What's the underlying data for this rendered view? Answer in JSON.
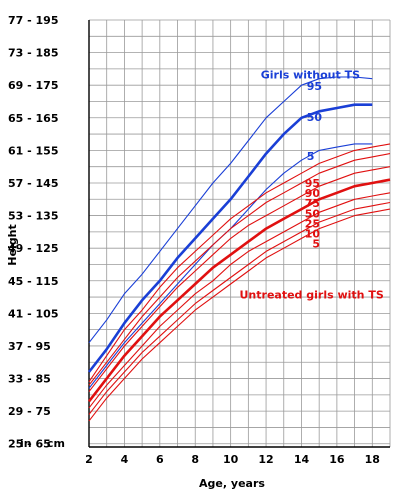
{
  "chart_data": {
    "type": "line",
    "title": "",
    "xlabel": "Age, years",
    "ylabel": "Height",
    "xlim": [
      2,
      19
    ],
    "ylim": [
      64,
      195
    ],
    "grid": true,
    "x_ticks": [
      2,
      4,
      6,
      8,
      10,
      12,
      14,
      16,
      18
    ],
    "y_ticks": [
      {
        "cm": 65,
        "label": "25 - 65"
      },
      {
        "cm": 75,
        "label": "29 - 75"
      },
      {
        "cm": 85,
        "label": "33 - 85"
      },
      {
        "cm": 95,
        "label": "37 - 95"
      },
      {
        "cm": 105,
        "label": "41 - 105"
      },
      {
        "cm": 115,
        "label": "45 - 115"
      },
      {
        "cm": 125,
        "label": "49 - 125"
      },
      {
        "cm": 135,
        "label": "53 - 135"
      },
      {
        "cm": 145,
        "label": "57 - 145"
      },
      {
        "cm": 155,
        "label": "61 - 155"
      },
      {
        "cm": 165,
        "label": "65 - 165"
      },
      {
        "cm": 175,
        "label": "69 - 175"
      },
      {
        "cm": 185,
        "label": "73 - 185"
      },
      {
        "cm": 195,
        "label": "77 - 195"
      }
    ],
    "y_unit_label": "in    cm",
    "groups": [
      {
        "label": "Girls without TS",
        "color": "#1a3fd6",
        "series": [
          {
            "name": "95",
            "label_at_x": 14.2,
            "stroke": "thin",
            "x": [
              2,
              3,
              4,
              5,
              6,
              7,
              8,
              9,
              10,
              11,
              12,
              13,
              14,
              15,
              16,
              17,
              18
            ],
            "y": [
              96,
              103,
              111,
              117,
              124,
              131,
              138,
              145,
              151,
              158,
              165,
              170,
              175,
              177,
              177.5,
              177.5,
              177
            ]
          },
          {
            "name": "50",
            "label_at_x": 14.2,
            "stroke": "thick",
            "x": [
              2,
              3,
              4,
              5,
              6,
              7,
              8,
              9,
              10,
              11,
              12,
              13,
              14,
              15,
              16,
              17,
              18
            ],
            "y": [
              87,
              94,
              102,
              109,
              115,
              122,
              128,
              134,
              140,
              147,
              154,
              160,
              165,
              167,
              168,
              169,
              169
            ]
          },
          {
            "name": "5",
            "label_at_x": 14.5,
            "stroke": "thin",
            "x": [
              2,
              3,
              4,
              5,
              6,
              7,
              8,
              9,
              10,
              11,
              12,
              13,
              14,
              15,
              16,
              17,
              18
            ],
            "y": [
              82,
              89,
              96,
              102,
              108,
              114,
              120,
              126,
              131,
              137,
              143,
              148,
              152,
              155,
              156,
              157,
              157
            ]
          }
        ]
      },
      {
        "label": "Untreated girls with TS",
        "color": "#e01010",
        "series": [
          {
            "name": "95",
            "label_at_x": 14.5,
            "stroke": "thin",
            "x": [
              2,
              3,
              4,
              5,
              6,
              7,
              8,
              9,
              10,
              11,
              12,
              13,
              14,
              15,
              16,
              17,
              18,
              19
            ],
            "y": [
              84,
              92,
              100,
              106,
              113,
              119,
              124,
              129,
              134,
              138,
              142,
              145,
              148,
              151,
              153,
              155,
              156,
              157
            ]
          },
          {
            "name": "90",
            "label_at_x": 14.5,
            "stroke": "thin",
            "x": [
              2,
              3,
              4,
              5,
              6,
              7,
              8,
              9,
              10,
              11,
              12,
              13,
              14,
              15,
              16,
              17,
              18,
              19
            ],
            "y": [
              83,
              90,
              97,
              104,
              110,
              116,
              121,
              126,
              131,
              135,
              139,
              142,
              145,
              148,
              150,
              152,
              153,
              154
            ]
          },
          {
            "name": "75",
            "label_at_x": 14.5,
            "stroke": "thin",
            "x": [
              2,
              3,
              4,
              5,
              6,
              7,
              8,
              9,
              10,
              11,
              12,
              13,
              14,
              15,
              16,
              17,
              18,
              19
            ],
            "y": [
              81,
              88,
              95,
              101,
              107,
              113,
              118,
              123,
              128,
              132,
              135,
              138,
              141,
              144,
              146,
              148,
              149,
              150
            ]
          },
          {
            "name": "50",
            "label_at_x": 14.5,
            "stroke": "thick",
            "x": [
              2,
              3,
              4,
              5,
              6,
              7,
              8,
              9,
              10,
              11,
              12,
              13,
              14,
              15,
              16,
              17,
              18,
              19
            ],
            "y": [
              78,
              85,
              92,
              98,
              104,
              109,
              114,
              119,
              123,
              127,
              131,
              134,
              137,
              140,
              142,
              144,
              145,
              146
            ]
          },
          {
            "name": "25",
            "label_at_x": 14.5,
            "stroke": "thin",
            "x": [
              2,
              3,
              4,
              5,
              6,
              7,
              8,
              9,
              10,
              11,
              12,
              13,
              14,
              15,
              16,
              17,
              18,
              19
            ],
            "y": [
              76,
              83,
              89,
              95,
              101,
              106,
              111,
              115,
              120,
              124,
              127,
              130,
              133,
              136,
              138,
              140,
              141,
              142
            ]
          },
          {
            "name": "10",
            "label_at_x": 14.5,
            "stroke": "thin",
            "x": [
              2,
              3,
              4,
              5,
              6,
              7,
              8,
              9,
              10,
              11,
              12,
              13,
              14,
              15,
              16,
              17,
              18,
              19
            ],
            "y": [
              74,
              81,
              87,
              93,
              98,
              103,
              108,
              112,
              116,
              120,
              124,
              127,
              130,
              133,
              135,
              137,
              138,
              139
            ]
          },
          {
            "name": "5",
            "label_at_x": 14.5,
            "stroke": "thin",
            "x": [
              2,
              3,
              4,
              5,
              6,
              7,
              8,
              9,
              10,
              11,
              12,
              13,
              14,
              15,
              16,
              17,
              18,
              19
            ],
            "y": [
              72,
              79,
              85,
              91,
              96,
              101,
              106,
              110,
              114,
              118,
              122,
              125,
              128,
              131,
              133,
              135,
              136,
              137
            ]
          }
        ]
      }
    ]
  }
}
